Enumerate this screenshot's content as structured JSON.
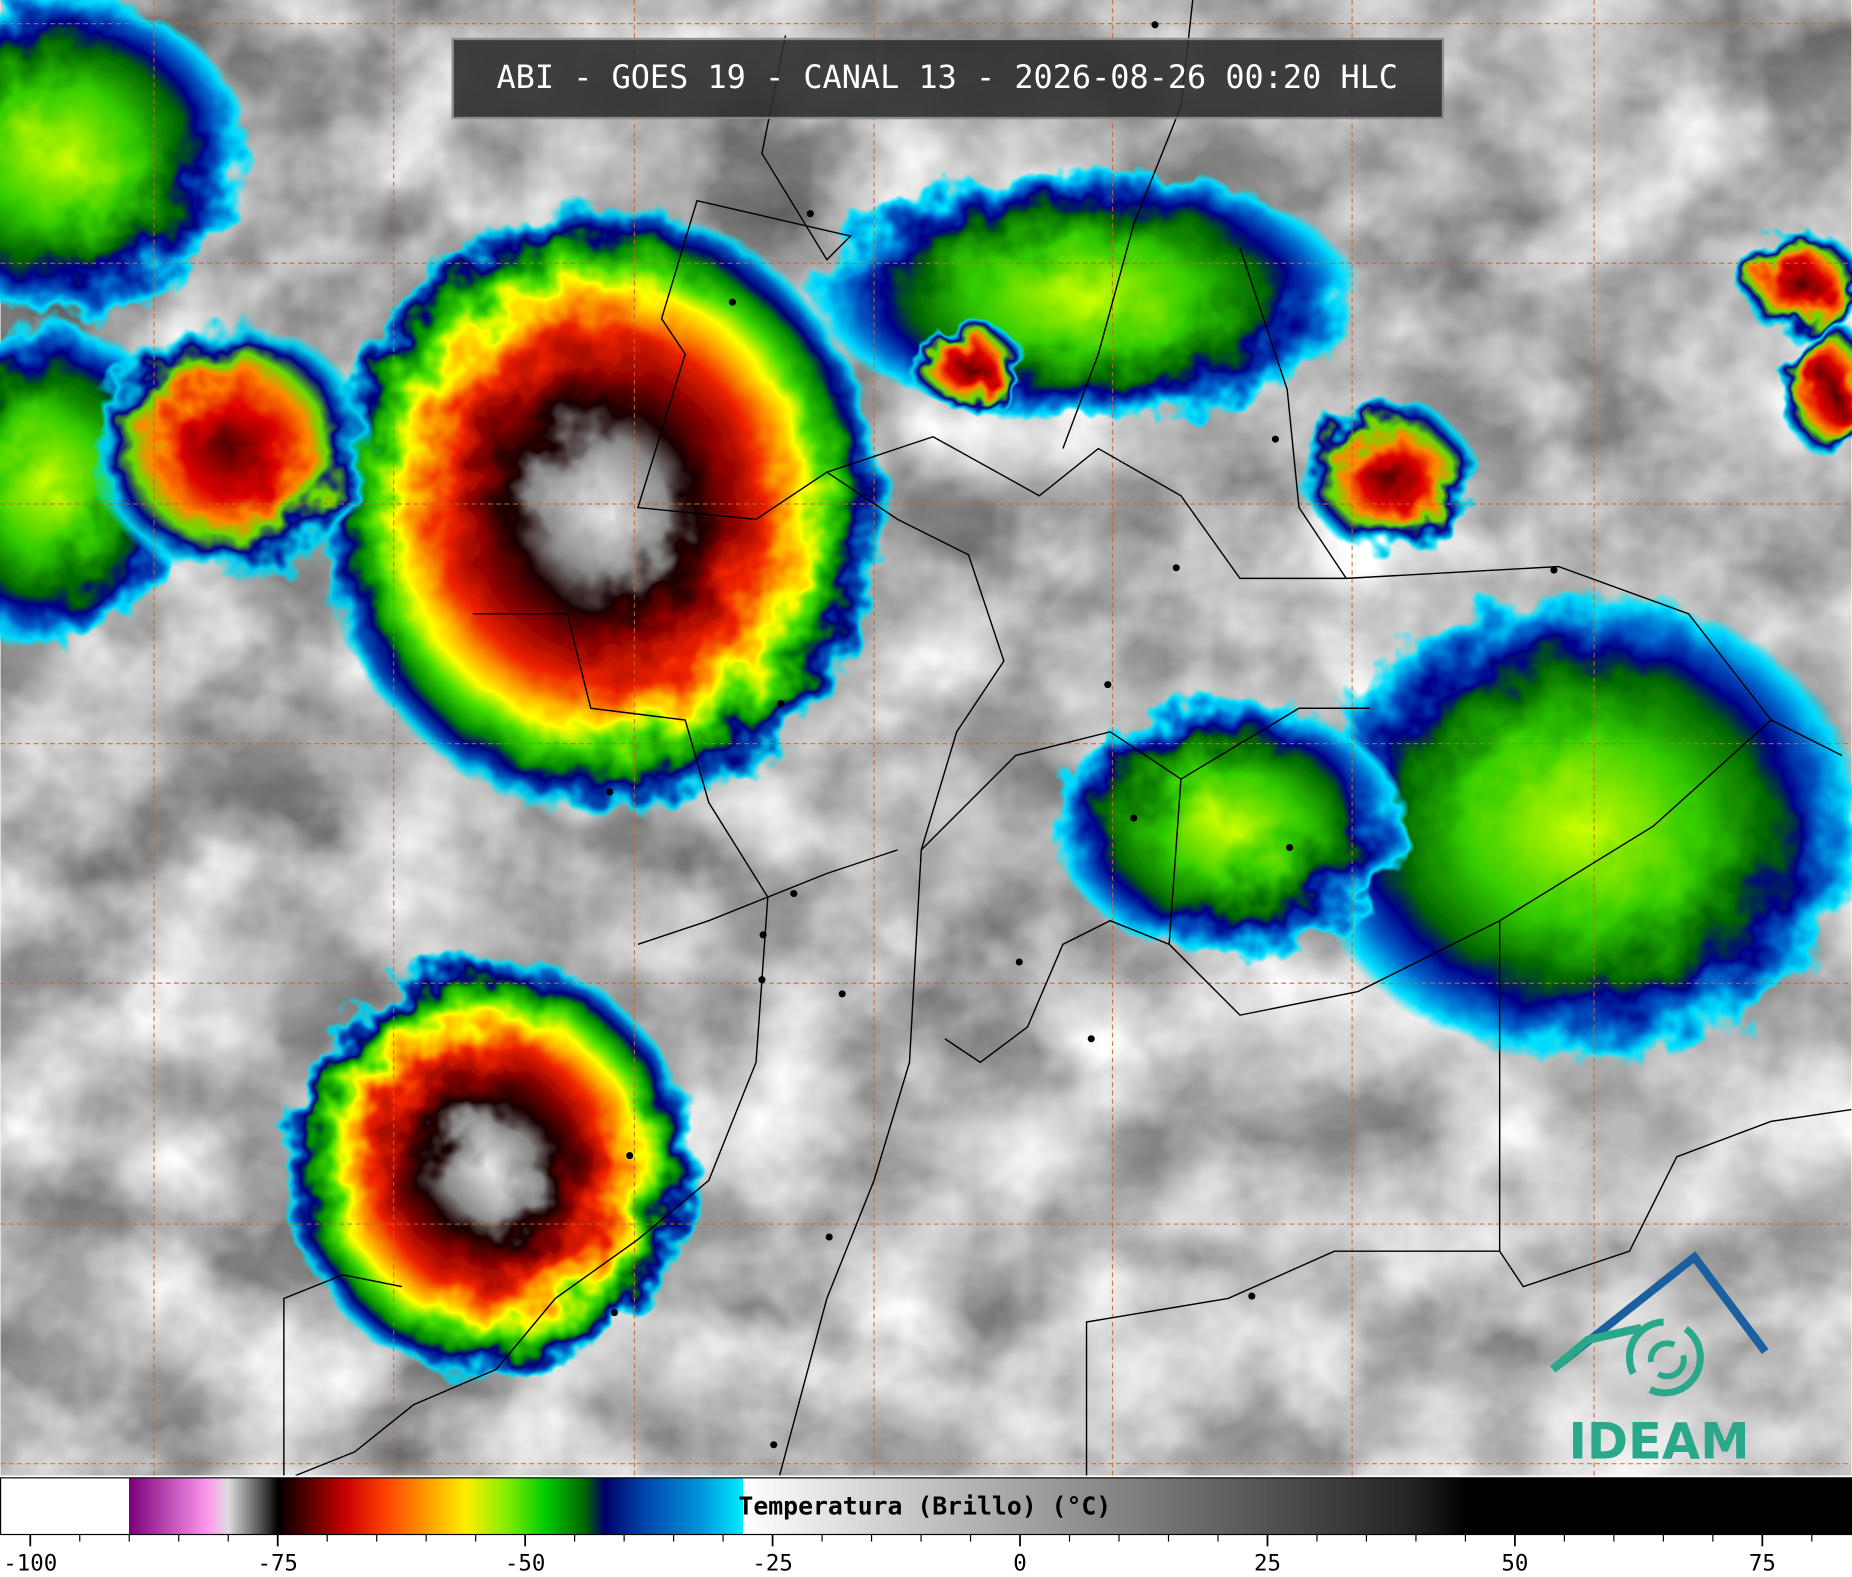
{
  "header": {
    "title": "ABI - GOES 19 - CANAL 13 - 2026-08-26 00:20 HLC"
  },
  "colorbar": {
    "label": "Temperatura (Brillo) (°C)",
    "lim": [
      -103,
      84
    ],
    "ticks": [
      -100,
      -75,
      -50,
      -25,
      0,
      25,
      50,
      75
    ],
    "minor_ticks": [
      -95,
      -90,
      -85,
      -80,
      -70,
      -65,
      -60,
      -55,
      -45,
      -40,
      -35,
      -30,
      -20,
      -15,
      -10,
      -5,
      5,
      10,
      15,
      20,
      30,
      35,
      40,
      45,
      55,
      60,
      65,
      70,
      80
    ],
    "stops": [
      {
        "value": -103,
        "color": "#ffffff"
      },
      {
        "value": -90,
        "color": "#ffffff"
      },
      {
        "value": -90,
        "color": "#7a007a"
      },
      {
        "value": -82,
        "color": "#ff99ee"
      },
      {
        "value": -80,
        "color": "#dddddd"
      },
      {
        "value": -76,
        "color": "#333333"
      },
      {
        "value": -75,
        "color": "#000000"
      },
      {
        "value": -72,
        "color": "#550000"
      },
      {
        "value": -68,
        "color": "#cc0000"
      },
      {
        "value": -64,
        "color": "#ff4400"
      },
      {
        "value": -60,
        "color": "#ff9900"
      },
      {
        "value": -56,
        "color": "#ffee00"
      },
      {
        "value": -52,
        "color": "#88ee00"
      },
      {
        "value": -48,
        "color": "#00cc00"
      },
      {
        "value": -44,
        "color": "#006600"
      },
      {
        "value": -42,
        "color": "#000066"
      },
      {
        "value": -38,
        "color": "#0044aa"
      },
      {
        "value": -32,
        "color": "#0099dd"
      },
      {
        "value": -28,
        "color": "#00eeff"
      },
      {
        "value": -28,
        "color": "#ffffff"
      },
      {
        "value": 40,
        "color": "#222222"
      },
      {
        "value": 45,
        "color": "#000000"
      },
      {
        "value": 84,
        "color": "#000000"
      }
    ]
  },
  "logo": {
    "text": "IDEAM"
  }
}
